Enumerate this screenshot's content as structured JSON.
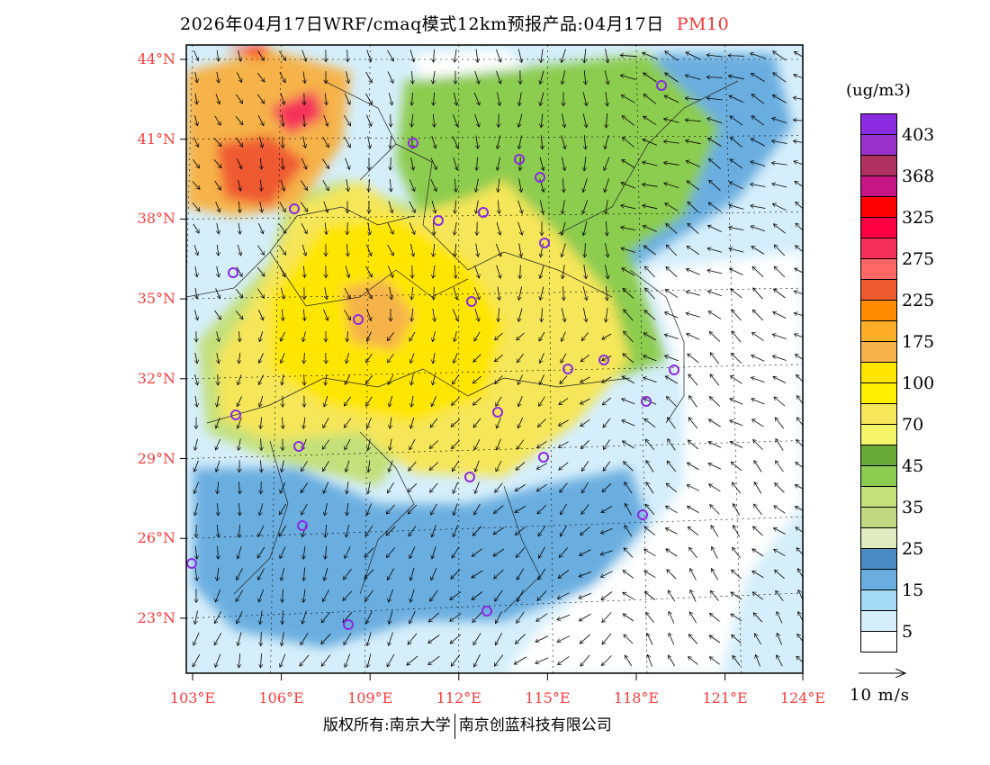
{
  "title": {
    "main": "2026年04月17日WRF/cmaq模式12km预报产品:04月17日",
    "pollutant": "PM10"
  },
  "axes": {
    "latitudes": [
      "44°N",
      "41°N",
      "38°N",
      "35°N",
      "32°N",
      "29°N",
      "26°N",
      "23°N"
    ],
    "longitudes": [
      "103°E",
      "106°E",
      "109°E",
      "112°E",
      "115°E",
      "118°E",
      "121°E",
      "124°E"
    ]
  },
  "legend": {
    "unit": "(ug/m3)",
    "colors": [
      "#8a2be2",
      "#9932cc",
      "#b03060",
      "#c71585",
      "#ff0000",
      "#ff0044",
      "#f5305a",
      "#ff6666",
      "#f05a30",
      "#ff8c00",
      "#ffae28",
      "#f5b34a",
      "#ffe600",
      "#fff000",
      "#f5e65a",
      "#f5f56a",
      "#6aaa38",
      "#8ccc50",
      "#c3e07a",
      "#c3d880",
      "#e0ebc0",
      "#4a8cc3",
      "#6aaee0",
      "#a5daf5",
      "#d5eefa",
      "#ffffff"
    ],
    "labels": [
      "403",
      "368",
      "325",
      "275",
      "225",
      "175",
      "100",
      "70",
      "45",
      "35",
      "25",
      "15",
      "5"
    ]
  },
  "wind_reference": "10 m/s",
  "copyright": {
    "left": "版权所有:南京大学",
    "right": "南京创蓝科技有限公司"
  }
}
